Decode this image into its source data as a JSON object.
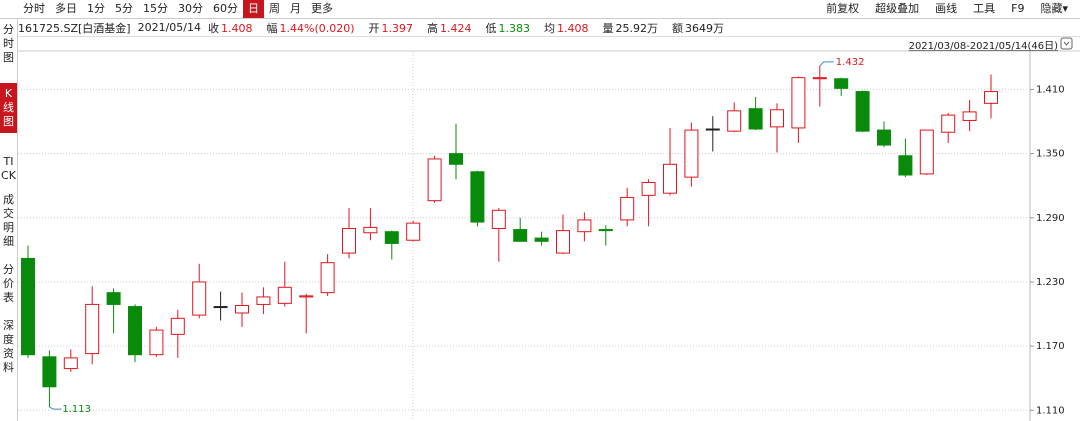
{
  "toolbar": {
    "left": [
      "分时",
      "多日",
      "1分",
      "5分",
      "15分",
      "30分",
      "60分",
      "日",
      "周",
      "月",
      "更多"
    ],
    "selected": 7,
    "right": [
      "前复权",
      "超级叠加",
      "画线",
      "工具",
      "F9",
      "隐藏▾"
    ]
  },
  "side_tabs": [
    "分时图",
    "K线图",
    "TICK",
    "成交明细",
    "分价表",
    "深度资料"
  ],
  "side_selected": 1,
  "quote": {
    "symbol": "161725.SZ[白酒基金]",
    "date": "2021/05/14",
    "items": [
      {
        "label": "收",
        "value": "1.408",
        "color": "#e0161d"
      },
      {
        "label": "幅",
        "value": "1.44%(0.020)",
        "color": "#e0161d"
      },
      {
        "label": "开",
        "value": "1.397",
        "color": "#e0161d"
      },
      {
        "label": "高",
        "value": "1.424",
        "color": "#e0161d"
      },
      {
        "label": "低",
        "value": "1.383",
        "color": "#0a8a0a"
      },
      {
        "label": "均",
        "value": "1.408",
        "color": "#e0161d"
      },
      {
        "label": "量",
        "value": "25.92万",
        "color": "#222"
      },
      {
        "label": "额",
        "value": "3649万",
        "color": "#222"
      }
    ]
  },
  "range_label": "2021/03/08-2021/05/14(46日)",
  "chart_data": {
    "type": "candlestick",
    "open": [
      1.252,
      1.16,
      1.149,
      1.163,
      1.22,
      1.207,
      1.162,
      1.181,
      1.199,
      1.207,
      1.201,
      1.209,
      1.21,
      1.216,
      1.22,
      1.257,
      1.276,
      1.277,
      1.269,
      1.306,
      1.35,
      1.333,
      1.28,
      1.279,
      1.271,
      1.257,
      1.277,
      1.279,
      1.288,
      1.311,
      1.313,
      1.328,
      1.373,
      1.371,
      1.392,
      1.375,
      1.374,
      1.42,
      1.42,
      1.408,
      1.372,
      1.348,
      1.331,
      1.37,
      1.381,
      1.397
    ],
    "high": [
      1.264,
      1.166,
      1.167,
      1.226,
      1.224,
      1.209,
      1.188,
      1.204,
      1.247,
      1.221,
      1.22,
      1.225,
      1.249,
      1.219,
      1.256,
      1.299,
      1.299,
      1.278,
      1.287,
      1.348,
      1.378,
      1.334,
      1.299,
      1.29,
      1.277,
      1.293,
      1.295,
      1.283,
      1.318,
      1.326,
      1.374,
      1.379,
      1.385,
      1.398,
      1.403,
      1.397,
      1.422,
      1.432,
      1.421,
      1.409,
      1.38,
      1.364,
      1.372,
      1.388,
      1.4,
      1.424
    ],
    "low": [
      1.159,
      1.113,
      1.146,
      1.153,
      1.182,
      1.155,
      1.16,
      1.159,
      1.196,
      1.194,
      1.188,
      1.2,
      1.207,
      1.182,
      1.217,
      1.252,
      1.269,
      1.251,
      1.268,
      1.304,
      1.326,
      1.282,
      1.249,
      1.268,
      1.264,
      1.256,
      1.268,
      1.264,
      1.282,
      1.282,
      1.311,
      1.319,
      1.352,
      1.37,
      1.372,
      1.351,
      1.36,
      1.394,
      1.404,
      1.37,
      1.356,
      1.328,
      1.33,
      1.36,
      1.371,
      1.383
    ],
    "close": [
      1.162,
      1.132,
      1.159,
      1.209,
      1.209,
      1.162,
      1.185,
      1.196,
      1.23,
      1.207,
      1.208,
      1.216,
      1.225,
      1.217,
      1.248,
      1.28,
      1.281,
      1.266,
      1.285,
      1.345,
      1.34,
      1.286,
      1.297,
      1.268,
      1.268,
      1.278,
      1.288,
      1.278,
      1.309,
      1.323,
      1.34,
      1.372,
      1.373,
      1.39,
      1.373,
      1.391,
      1.421,
      1.421,
      1.411,
      1.371,
      1.358,
      1.33,
      1.372,
      1.386,
      1.389,
      1.408
    ],
    "up_color": "#e0161d",
    "down_color": "#0a8a0a",
    "flat_color": "#222",
    "ylim": [
      1.1,
      1.445
    ],
    "yticks": [
      {
        "value": 1.11,
        "label": "1.110"
      },
      {
        "value": 1.17,
        "label": "1.170"
      },
      {
        "value": 1.23,
        "label": "1.230"
      },
      {
        "value": 1.29,
        "label": "1.290"
      },
      {
        "value": 1.35,
        "label": "1.350"
      },
      {
        "value": 1.41,
        "label": "1.410"
      }
    ],
    "grid": true,
    "max_label": "1.432",
    "min_label": "1.113"
  }
}
